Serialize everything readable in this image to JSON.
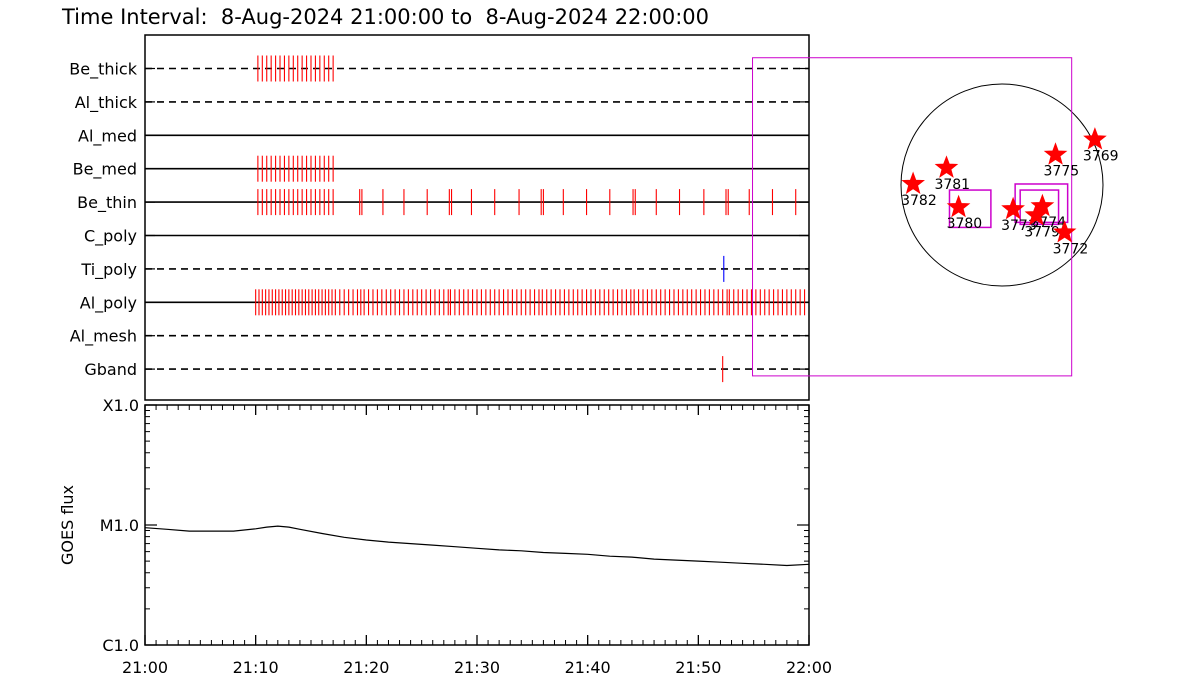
{
  "title": "Time Interval:  8-Aug-2024 21:00:00 to  8-Aug-2024 22:00:00",
  "colors": {
    "axis": "#000000",
    "event_red": "#ff0000",
    "event_blue": "#0000ff",
    "box_magenta": "#cc00cc",
    "star_red": "#ff0000"
  },
  "chart_data": [
    {
      "type": "timeline",
      "x_unit": "minutes after 21:00",
      "xlim": [
        0,
        60
      ],
      "tracks": [
        {
          "name": "Be_thick",
          "line": "dashed",
          "events": [
            {
              "color": "red",
              "times": [
                10.2,
                10.6,
                11.0,
                11.4,
                11.8,
                12.2,
                12.6,
                13.0,
                13.4,
                13.8,
                14.2,
                14.6,
                15.0,
                15.4,
                15.8,
                16.2,
                16.6,
                17.0
              ]
            }
          ]
        },
        {
          "name": "Al_thick",
          "line": "dashed",
          "events": []
        },
        {
          "name": "Al_med",
          "line": "solid",
          "events": []
        },
        {
          "name": "Be_med",
          "line": "solid",
          "events": [
            {
              "color": "red",
              "times": [
                10.2,
                10.6,
                11.0,
                11.4,
                11.8,
                12.2,
                12.6,
                13.0,
                13.4,
                13.8,
                14.2,
                14.6,
                15.0,
                15.4,
                15.8,
                16.2,
                16.6,
                17.0
              ]
            }
          ]
        },
        {
          "name": "Be_thin",
          "line": "solid",
          "events": [
            {
              "color": "red",
              "times": [
                10.2,
                10.6,
                11.0,
                11.4,
                11.8,
                12.2,
                12.6,
                13.0,
                13.4,
                13.8,
                14.2,
                14.6,
                15.0,
                15.4,
                15.8,
                16.2,
                16.6,
                17.0,
                19.4,
                19.6,
                21.5,
                23.4,
                25.5,
                27.5,
                27.7,
                29.5,
                31.6,
                33.8,
                35.8,
                36.0,
                37.8,
                39.9,
                42.0,
                44.1,
                44.3,
                46.2,
                48.3,
                50.5,
                52.5,
                52.7,
                54.6,
                56.7,
                58.8
              ]
            }
          ]
        },
        {
          "name": "C_poly",
          "line": "solid",
          "events": []
        },
        {
          "name": "Ti_poly",
          "line": "dashed",
          "events": [
            {
              "color": "blue",
              "times": [
                52.3
              ]
            }
          ]
        },
        {
          "name": "Al_poly",
          "line": "solid",
          "events": [
            {
              "color": "red",
              "times": [
                10.0,
                10.3,
                10.6,
                10.9,
                11.2,
                11.5,
                11.8,
                12.1,
                12.4,
                12.7,
                13.0,
                13.3,
                13.6,
                13.9,
                14.2,
                14.5,
                14.8,
                15.1,
                15.4,
                15.7,
                16.0,
                16.3,
                16.6,
                16.9,
                17.2,
                17.6,
                18.0,
                18.4,
                18.8,
                19.2,
                19.5,
                19.8,
                20.2,
                20.6,
                21.0,
                21.4,
                21.8,
                22.2,
                22.6,
                23.0,
                23.4,
                23.8,
                24.2,
                24.6,
                25.0,
                25.4,
                25.8,
                26.2,
                26.6,
                27.0,
                27.4,
                27.6,
                28.0,
                28.4,
                28.8,
                29.2,
                29.6,
                30.0,
                30.4,
                30.8,
                31.2,
                31.6,
                32.0,
                32.4,
                32.8,
                33.2,
                33.6,
                34.0,
                34.4,
                34.8,
                35.2,
                35.6,
                35.9,
                36.3,
                36.7,
                37.1,
                37.5,
                37.9,
                38.3,
                38.7,
                39.1,
                39.5,
                39.9,
                40.3,
                40.7,
                41.1,
                41.5,
                41.9,
                42.3,
                42.7,
                43.1,
                43.5,
                43.9,
                44.2,
                44.6,
                45.0,
                45.4,
                45.8,
                46.2,
                46.6,
                47.0,
                47.4,
                47.8,
                48.2,
                48.6,
                49.0,
                49.4,
                49.8,
                50.2,
                50.6,
                51.0,
                51.4,
                51.8,
                52.2,
                52.6,
                52.8,
                53.2,
                53.6,
                54.0,
                54.4,
                54.8,
                55.2,
                55.6,
                56.0,
                56.4,
                56.8,
                57.2,
                57.6,
                58.0,
                58.4,
                58.8,
                59.2,
                59.6
              ]
            }
          ]
        },
        {
          "name": "Al_mesh",
          "line": "dashed",
          "events": []
        },
        {
          "name": "Gband",
          "line": "dashed",
          "events": [
            {
              "color": "red",
              "times": [
                52.2
              ]
            }
          ]
        }
      ]
    },
    {
      "type": "line",
      "ylabel": "GOES flux",
      "y_scale": "log",
      "ylim": [
        1e-06,
        0.0001
      ],
      "y_tick_labels": [
        {
          "value": 0.0001,
          "label": "X1.0"
        },
        {
          "value": 1e-05,
          "label": "M1.0"
        },
        {
          "value": 1e-06,
          "label": "C1.0"
        }
      ],
      "xlim": [
        0,
        60
      ],
      "x_ticks": [
        {
          "value": 0,
          "label": "21:00"
        },
        {
          "value": 10,
          "label": "21:10"
        },
        {
          "value": 20,
          "label": "21:20"
        },
        {
          "value": 30,
          "label": "21:30"
        },
        {
          "value": 40,
          "label": "21:40"
        },
        {
          "value": 50,
          "label": "21:50"
        },
        {
          "value": 60,
          "label": "22:00"
        }
      ],
      "series": [
        {
          "x": [
            0,
            2,
            4,
            6,
            8,
            10,
            11,
            12,
            13,
            14,
            16,
            18,
            20,
            22,
            24,
            26,
            28,
            30,
            32,
            34,
            36,
            38,
            40,
            42,
            44,
            46,
            48,
            50,
            52,
            54,
            56,
            58,
            60
          ],
          "y": [
            9.5e-06,
            9.2e-06,
            8.9e-06,
            8.9e-06,
            8.9e-06,
            9.3e-06,
            9.6e-06,
            9.8e-06,
            9.6e-06,
            9.2e-06,
            8.5e-06,
            7.9e-06,
            7.5e-06,
            7.2e-06,
            7e-06,
            6.8e-06,
            6.6e-06,
            6.4e-06,
            6.2e-06,
            6.1e-06,
            5.9e-06,
            5.8e-06,
            5.7e-06,
            5.5e-06,
            5.4e-06,
            5.2e-06,
            5.1e-06,
            5e-06,
            4.9e-06,
            4.8e-06,
            4.7e-06,
            4.6e-06,
            4.7e-06
          ]
        }
      ]
    },
    {
      "type": "scatter",
      "subject": "solar disk map",
      "x_unit": "fraction of solar radius",
      "y_unit": "fraction of solar radius",
      "points": [
        {
          "label": "3769",
          "x": 0.92,
          "y": 0.45
        },
        {
          "label": "3775",
          "x": 0.53,
          "y": 0.3
        },
        {
          "label": "3781",
          "x": -0.55,
          "y": 0.17
        },
        {
          "label": "3782",
          "x": -0.88,
          "y": 0.01
        },
        {
          "label": "3780",
          "x": -0.43,
          "y": -0.22
        },
        {
          "label": "3773",
          "x": 0.11,
          "y": -0.24
        },
        {
          "label": "3774",
          "x": 0.4,
          "y": -0.21
        },
        {
          "label": "3779",
          "x": 0.34,
          "y": -0.3
        },
        {
          "label": "3772",
          "x": 0.62,
          "y": -0.47
        }
      ],
      "regions": [
        {
          "x0": -2.47,
          "y0": 1.26,
          "x1": 0.69,
          "y1": -1.89
        },
        {
          "x0": -0.52,
          "y0": -0.05,
          "x1": -0.11,
          "y1": -0.42
        },
        {
          "x0": 0.13,
          "y0": 0.01,
          "x1": 0.65,
          "y1": -0.37
        },
        {
          "x0": 0.18,
          "y0": -0.05,
          "x1": 0.56,
          "y1": -0.39
        }
      ]
    }
  ]
}
